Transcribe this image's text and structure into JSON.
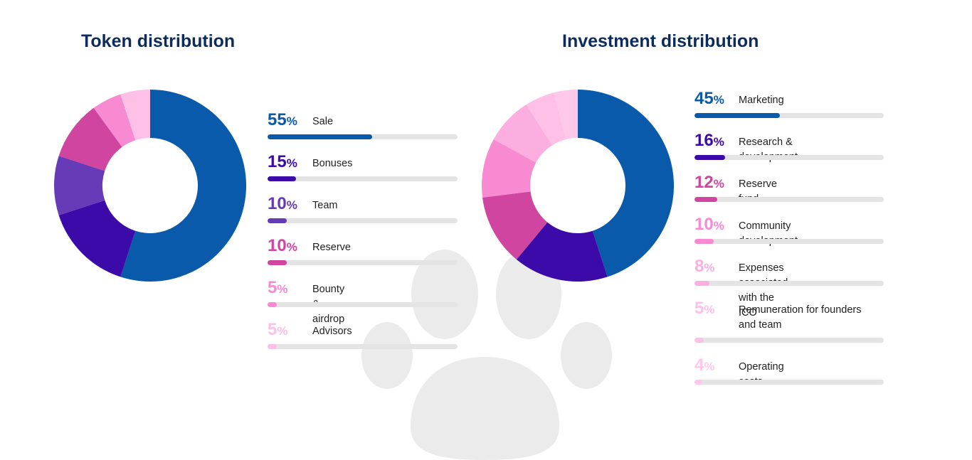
{
  "chart_data": [
    {
      "type": "pie",
      "title": "Token distribution",
      "slices": [
        {
          "label": "Sale",
          "value": 55,
          "color": "#0a5aab"
        },
        {
          "label": "Bonuses",
          "value": 15,
          "color": "#3b0aa8"
        },
        {
          "label": "Team",
          "value": 10,
          "color": "#673ab7"
        },
        {
          "label": "Reserve",
          "value": 10,
          "color": "#cf45a0"
        },
        {
          "label": "Bounty & airdrop",
          "value": 5,
          "color": "#f78ad0"
        },
        {
          "label": "Advisors",
          "value": 5,
          "color": "#ffc0e8"
        }
      ]
    },
    {
      "type": "pie",
      "title": "Investment distribution",
      "slices": [
        {
          "label": "Marketing",
          "value": 45,
          "color": "#0a5aab"
        },
        {
          "label": "Research & development",
          "value": 16,
          "color": "#3b0aa8"
        },
        {
          "label": "Reserve fund",
          "value": 12,
          "color": "#cf45a0"
        },
        {
          "label": "Community development",
          "value": 10,
          "color": "#f78ad0"
        },
        {
          "label": "Expenses associated with the ICO",
          "value": 8,
          "color": "#fbaedf"
        },
        {
          "label": "Remuneration for founders and team",
          "value": 5,
          "color": "#ffc0e8"
        },
        {
          "label": "Operating costs",
          "value": 4,
          "color": "#ffc8ea"
        }
      ]
    }
  ]
}
